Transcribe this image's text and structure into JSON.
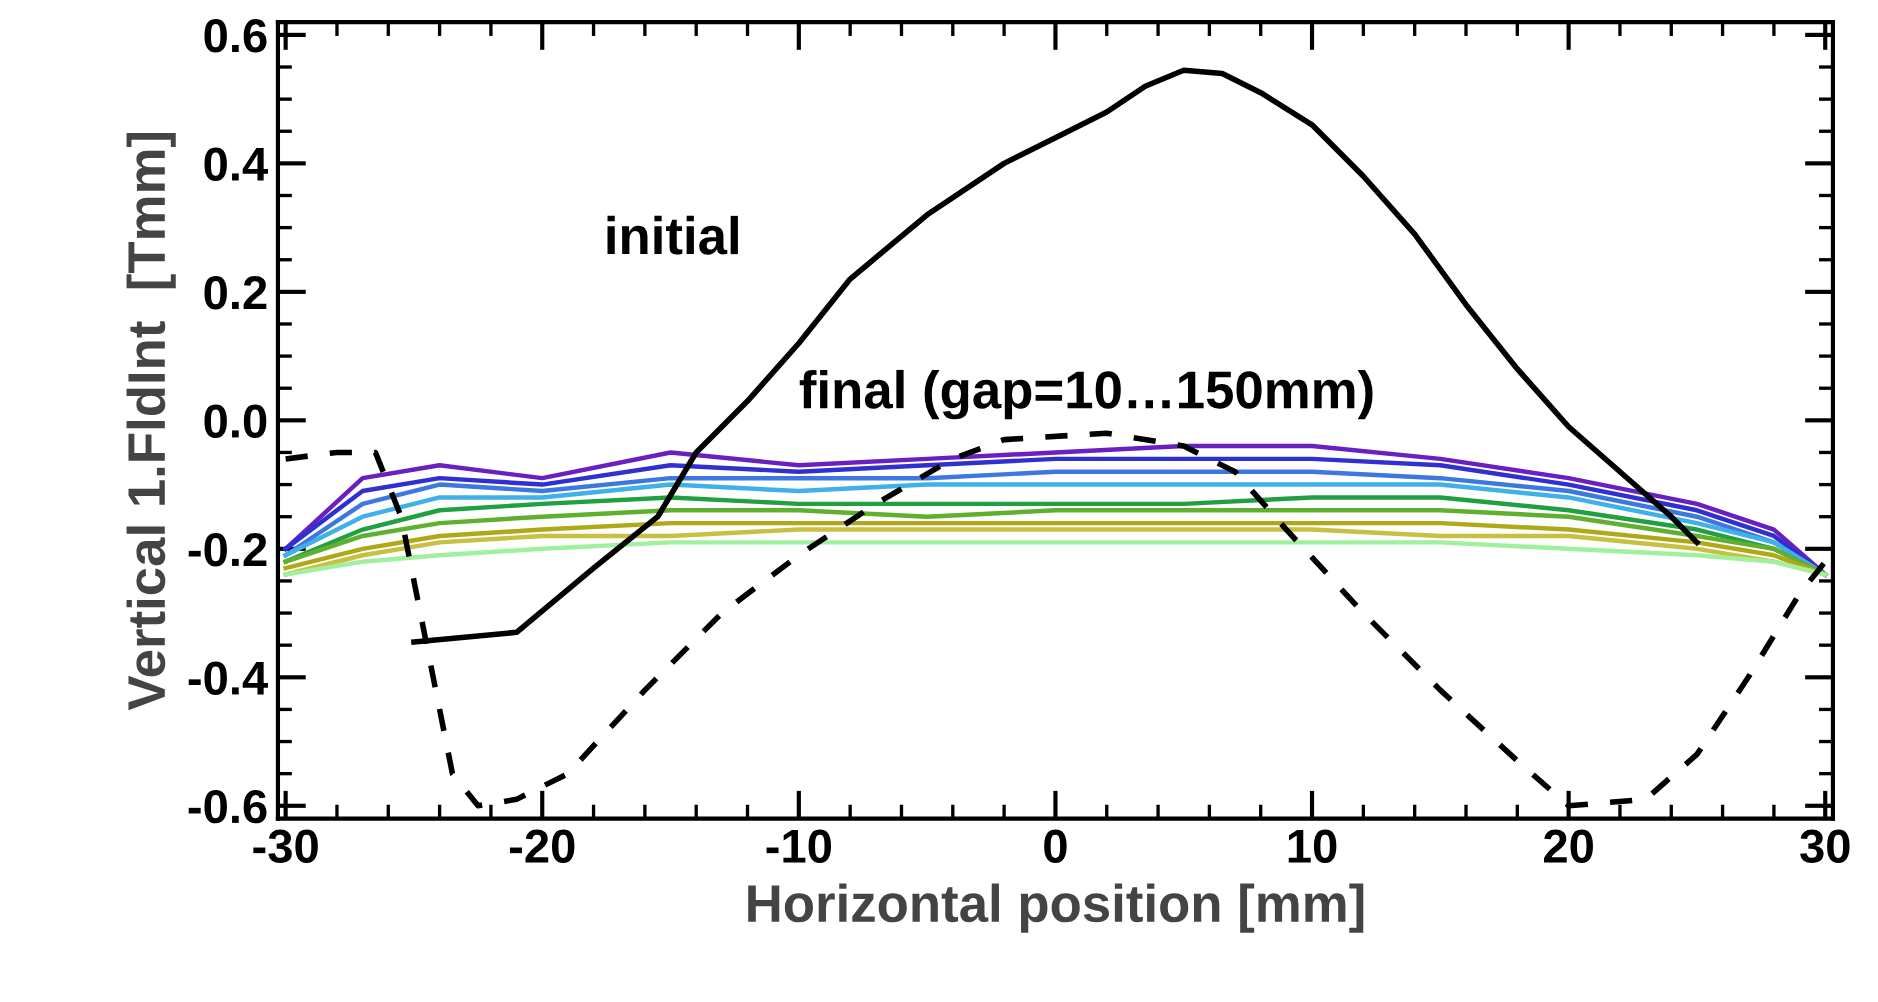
{
  "chart_data": {
    "type": "line",
    "xlabel": "Horizontal position [mm]",
    "ylabel": "Vertical 1.FldInt  [Tmm]",
    "annotations": [
      "initial",
      "final (gap=10…150mm)"
    ],
    "xlim": [
      -30.3,
      30.3
    ],
    "xticks": [
      -30,
      -20,
      -10,
      0,
      10,
      20,
      30
    ],
    "ylim": [
      -0.62,
      0.62
    ],
    "yticks": [
      -0.6,
      -0.4,
      -0.2,
      {
        "value": 0,
        "label": "0.0"
      },
      0.2,
      0.4,
      0.6
    ],
    "grid": false,
    "legend": false,
    "series": [
      {
        "color": "#000000",
        "line_style": "solid",
        "x": [
          -25,
          -21,
          -18,
          -15.5,
          -14,
          -12,
          -10,
          -8,
          -5,
          -2,
          0,
          2,
          3.5,
          5,
          6.5,
          8,
          10,
          12,
          14,
          16,
          18,
          20,
          22,
          24,
          25
        ],
        "values": [
          -0.345,
          -0.33,
          -0.23,
          -0.15,
          -0.05,
          0.03,
          0.12,
          0.22,
          0.32,
          0.4,
          0.44,
          0.48,
          0.52,
          0.545,
          0.54,
          0.51,
          0.46,
          0.38,
          0.29,
          0.18,
          0.08,
          -0.01,
          -0.08,
          -0.15,
          -0.19
        ]
      },
      {
        "color": "#000000",
        "line_style": "dashed",
        "x": [
          -30,
          -28,
          -26.5,
          -25.5,
          -24.5,
          -23.5,
          -22.5,
          -21,
          -19,
          -16,
          -13,
          -10,
          -7,
          -4,
          -2,
          2,
          5,
          7,
          9,
          12,
          15,
          18,
          20,
          23,
          25,
          27,
          29,
          30
        ],
        "values": [
          -0.06,
          -0.05,
          -0.05,
          -0.15,
          -0.35,
          -0.55,
          -0.6,
          -0.59,
          -0.55,
          -0.42,
          -0.3,
          -0.21,
          -0.13,
          -0.06,
          -0.03,
          -0.02,
          -0.04,
          -0.08,
          -0.17,
          -0.3,
          -0.42,
          -0.53,
          -0.6,
          -0.59,
          -0.52,
          -0.4,
          -0.27,
          -0.22
        ]
      },
      {
        "color": "#6a1fc0",
        "line_style": "solid",
        "x": [
          -30,
          -27,
          -24,
          -20,
          -15,
          -10,
          -5,
          0,
          5,
          10,
          15,
          20,
          25,
          28,
          30
        ],
        "values": [
          -0.2,
          -0.09,
          -0.07,
          -0.09,
          -0.05,
          -0.07,
          -0.06,
          -0.05,
          -0.04,
          -0.04,
          -0.06,
          -0.09,
          -0.13,
          -0.17,
          -0.24
        ]
      },
      {
        "color": "#3030d0",
        "line_style": "solid",
        "x": [
          -30,
          -27,
          -24,
          -20,
          -15,
          -10,
          -5,
          0,
          5,
          10,
          15,
          20,
          25,
          28,
          30
        ],
        "values": [
          -0.2,
          -0.11,
          -0.09,
          -0.1,
          -0.07,
          -0.08,
          -0.07,
          -0.06,
          -0.06,
          -0.06,
          -0.07,
          -0.1,
          -0.14,
          -0.18,
          -0.24
        ]
      },
      {
        "color": "#3c78e0",
        "line_style": "solid",
        "x": [
          -30,
          -27,
          -24,
          -20,
          -15,
          -10,
          -5,
          0,
          5,
          10,
          15,
          20,
          25,
          28,
          30
        ],
        "values": [
          -0.21,
          -0.13,
          -0.1,
          -0.11,
          -0.09,
          -0.09,
          -0.09,
          -0.08,
          -0.08,
          -0.08,
          -0.09,
          -0.11,
          -0.15,
          -0.19,
          -0.24
        ]
      },
      {
        "color": "#40b0e8",
        "line_style": "solid",
        "x": [
          -30,
          -27,
          -24,
          -20,
          -15,
          -10,
          -5,
          0,
          5,
          10,
          15,
          20,
          25,
          28,
          30
        ],
        "values": [
          -0.21,
          -0.15,
          -0.12,
          -0.12,
          -0.1,
          -0.11,
          -0.1,
          -0.1,
          -0.1,
          -0.1,
          -0.1,
          -0.12,
          -0.16,
          -0.19,
          -0.24
        ]
      },
      {
        "color": "#20a040",
        "line_style": "solid",
        "x": [
          -30,
          -27,
          -24,
          -20,
          -15,
          -10,
          -5,
          0,
          5,
          10,
          15,
          20,
          25,
          28,
          30
        ],
        "values": [
          -0.22,
          -0.17,
          -0.14,
          -0.13,
          -0.12,
          -0.13,
          -0.13,
          -0.13,
          -0.13,
          -0.12,
          -0.12,
          -0.14,
          -0.17,
          -0.2,
          -0.24
        ]
      },
      {
        "color": "#60b030",
        "line_style": "solid",
        "x": [
          -30,
          -27,
          -24,
          -20,
          -15,
          -10,
          -5,
          0,
          5,
          10,
          15,
          20,
          25,
          28,
          30
        ],
        "values": [
          -0.22,
          -0.18,
          -0.16,
          -0.15,
          -0.14,
          -0.14,
          -0.15,
          -0.14,
          -0.14,
          -0.14,
          -0.14,
          -0.15,
          -0.18,
          -0.2,
          -0.24
        ]
      },
      {
        "color": "#b0a818",
        "line_style": "solid",
        "x": [
          -30,
          -27,
          -24,
          -20,
          -15,
          -10,
          -5,
          0,
          5,
          10,
          15,
          20,
          25,
          28,
          30
        ],
        "values": [
          -0.23,
          -0.2,
          -0.18,
          -0.17,
          -0.16,
          -0.16,
          -0.16,
          -0.16,
          -0.16,
          -0.16,
          -0.16,
          -0.17,
          -0.19,
          -0.21,
          -0.24
        ]
      },
      {
        "color": "#c8c040",
        "line_style": "solid",
        "x": [
          -30,
          -27,
          -24,
          -20,
          -15,
          -10,
          -5,
          0,
          5,
          10,
          15,
          20,
          25,
          28,
          30
        ],
        "values": [
          -0.24,
          -0.21,
          -0.19,
          -0.18,
          -0.18,
          -0.17,
          -0.17,
          -0.17,
          -0.17,
          -0.17,
          -0.18,
          -0.18,
          -0.2,
          -0.22,
          -0.24
        ]
      },
      {
        "color": "#a0f0a0",
        "line_style": "solid",
        "x": [
          -30,
          -27,
          -24,
          -20,
          -15,
          -10,
          -5,
          0,
          5,
          10,
          15,
          20,
          25,
          28,
          30
        ],
        "values": [
          -0.24,
          -0.22,
          -0.21,
          -0.2,
          -0.19,
          -0.19,
          -0.19,
          -0.19,
          -0.19,
          -0.19,
          -0.19,
          -0.2,
          -0.21,
          -0.22,
          -0.24
        ]
      }
    ]
  }
}
